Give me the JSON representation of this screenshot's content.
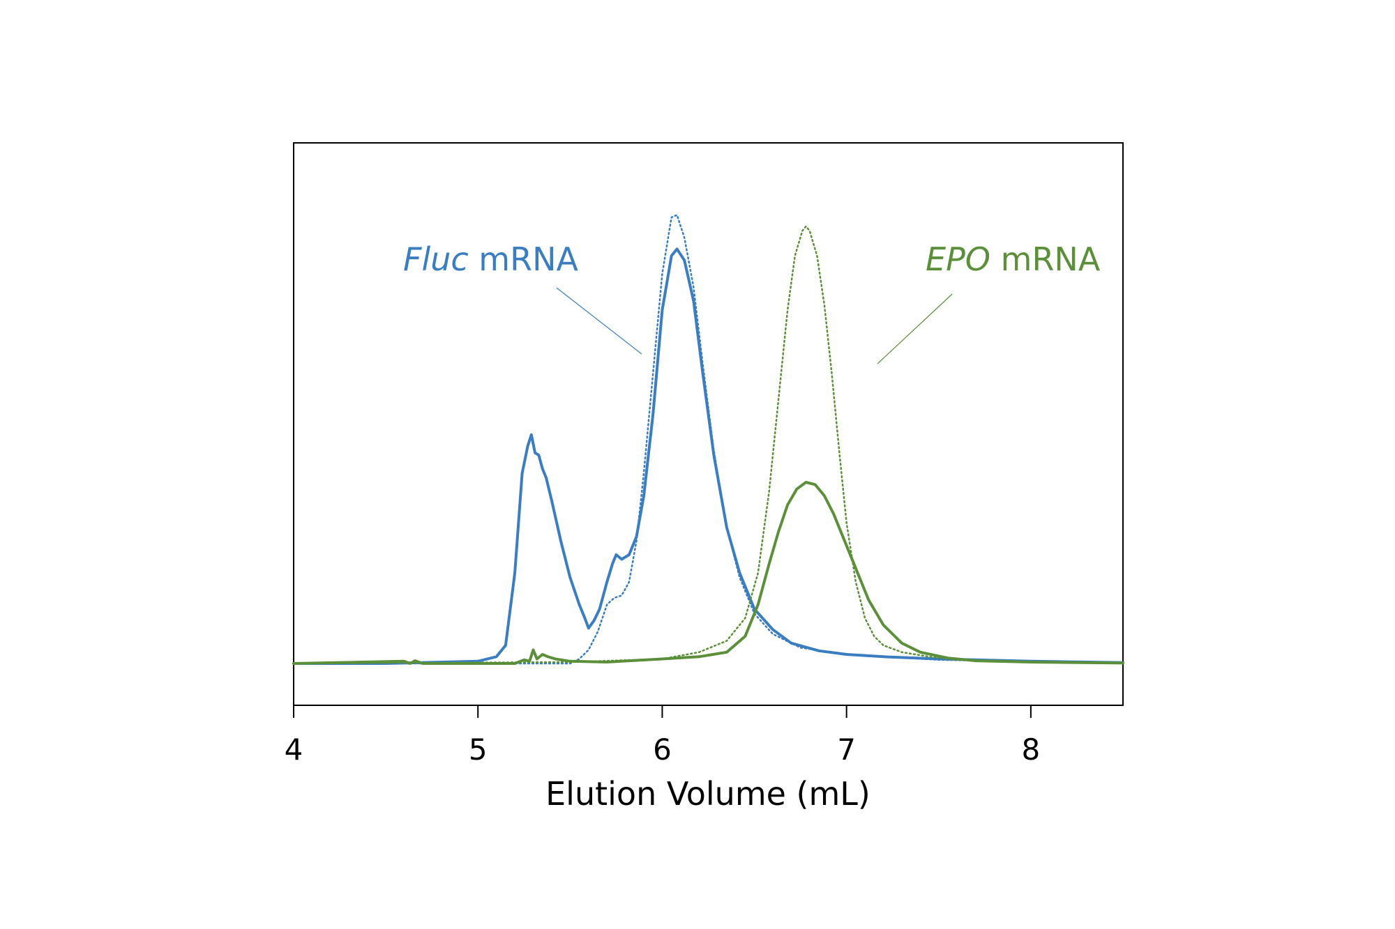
{
  "chart_data": {
    "type": "line",
    "title": "",
    "xlabel": "Elution Volume (mL)",
    "ylabel": "",
    "xlim": [
      4,
      8.5
    ],
    "ylim": [
      0,
      1
    ],
    "x_ticks": [
      "4",
      "5",
      "6",
      "7",
      "8"
    ],
    "grid": false,
    "legend": "none",
    "colors": {
      "fluc": "#3a7dc0",
      "epo": "#5b8f3a"
    },
    "annotations": [
      {
        "italic": "Fluc",
        "text": " mRNA",
        "series": "fluc"
      },
      {
        "italic": "EPO",
        "text": " mRNA",
        "series": "epo"
      }
    ],
    "series": [
      {
        "name": "Fluc mRNA",
        "group": "fluc",
        "style": "solid",
        "x": [
          4.0,
          4.5,
          5.0,
          5.1,
          5.15,
          5.2,
          5.24,
          5.27,
          5.29,
          5.31,
          5.33,
          5.35,
          5.37,
          5.4,
          5.45,
          5.5,
          5.55,
          5.58,
          5.6,
          5.63,
          5.66,
          5.7,
          5.73,
          5.75,
          5.78,
          5.82,
          5.86,
          5.9,
          5.95,
          6.0,
          6.05,
          6.08,
          6.12,
          6.17,
          6.22,
          6.28,
          6.35,
          6.42,
          6.5,
          6.6,
          6.7,
          6.85,
          7.0,
          7.2,
          7.5,
          8.0,
          8.5
        ],
        "y": [
          0.0,
          0.0,
          0.005,
          0.015,
          0.04,
          0.2,
          0.42,
          0.48,
          0.505,
          0.465,
          0.46,
          0.43,
          0.41,
          0.36,
          0.27,
          0.19,
          0.13,
          0.1,
          0.078,
          0.095,
          0.12,
          0.18,
          0.22,
          0.24,
          0.23,
          0.24,
          0.28,
          0.37,
          0.55,
          0.78,
          0.9,
          0.915,
          0.89,
          0.8,
          0.64,
          0.46,
          0.3,
          0.2,
          0.12,
          0.075,
          0.045,
          0.028,
          0.02,
          0.015,
          0.01,
          0.005,
          0.002
        ]
      },
      {
        "name": "Fluc mRNA (dotted)",
        "group": "fluc",
        "style": "dotted",
        "x": [
          4.0,
          5.5,
          5.55,
          5.6,
          5.65,
          5.7,
          5.74,
          5.78,
          5.82,
          5.86,
          5.9,
          5.95,
          6.0,
          6.05,
          6.08,
          6.12,
          6.17,
          6.22,
          6.28,
          6.35,
          6.42,
          6.5,
          6.6,
          6.75,
          7.0,
          7.5,
          8.0,
          8.5
        ],
        "y": [
          0.0,
          0.0,
          0.01,
          0.03,
          0.07,
          0.13,
          0.145,
          0.15,
          0.18,
          0.27,
          0.42,
          0.64,
          0.86,
          0.985,
          0.99,
          0.94,
          0.83,
          0.66,
          0.47,
          0.3,
          0.19,
          0.11,
          0.065,
          0.035,
          0.02,
          0.008,
          0.004,
          0.002
        ]
      },
      {
        "name": "EPO mRNA",
        "group": "epo",
        "style": "solid",
        "x": [
          4.0,
          4.6,
          4.63,
          4.66,
          4.7,
          5.2,
          5.25,
          5.28,
          5.3,
          5.32,
          5.35,
          5.38,
          5.42,
          5.5,
          5.7,
          6.0,
          6.2,
          6.35,
          6.45,
          6.52,
          6.58,
          6.63,
          6.68,
          6.73,
          6.78,
          6.83,
          6.88,
          6.93,
          6.98,
          7.05,
          7.12,
          7.2,
          7.3,
          7.4,
          7.55,
          7.7,
          8.0,
          8.5
        ],
        "y": [
          0.0,
          0.005,
          0.0,
          0.006,
          0.0,
          0.0,
          0.008,
          0.005,
          0.03,
          0.01,
          0.02,
          0.015,
          0.01,
          0.005,
          0.003,
          0.01,
          0.015,
          0.025,
          0.06,
          0.13,
          0.22,
          0.29,
          0.35,
          0.385,
          0.4,
          0.395,
          0.37,
          0.33,
          0.28,
          0.21,
          0.14,
          0.085,
          0.045,
          0.025,
          0.012,
          0.006,
          0.003,
          0.001
        ]
      },
      {
        "name": "EPO mRNA (dotted)",
        "group": "epo",
        "style": "dotted",
        "x": [
          4.0,
          5.5,
          6.0,
          6.2,
          6.35,
          6.45,
          6.52,
          6.58,
          6.63,
          6.68,
          6.72,
          6.76,
          6.78,
          6.8,
          6.84,
          6.88,
          6.92,
          6.96,
          7.0,
          7.05,
          7.1,
          7.15,
          7.2,
          7.3,
          7.45,
          7.6,
          8.0,
          8.5
        ],
        "y": [
          0.0,
          0.003,
          0.01,
          0.025,
          0.05,
          0.1,
          0.2,
          0.38,
          0.58,
          0.78,
          0.9,
          0.955,
          0.965,
          0.955,
          0.9,
          0.79,
          0.64,
          0.47,
          0.31,
          0.18,
          0.1,
          0.06,
          0.04,
          0.025,
          0.015,
          0.008,
          0.004,
          0.001
        ]
      }
    ]
  }
}
